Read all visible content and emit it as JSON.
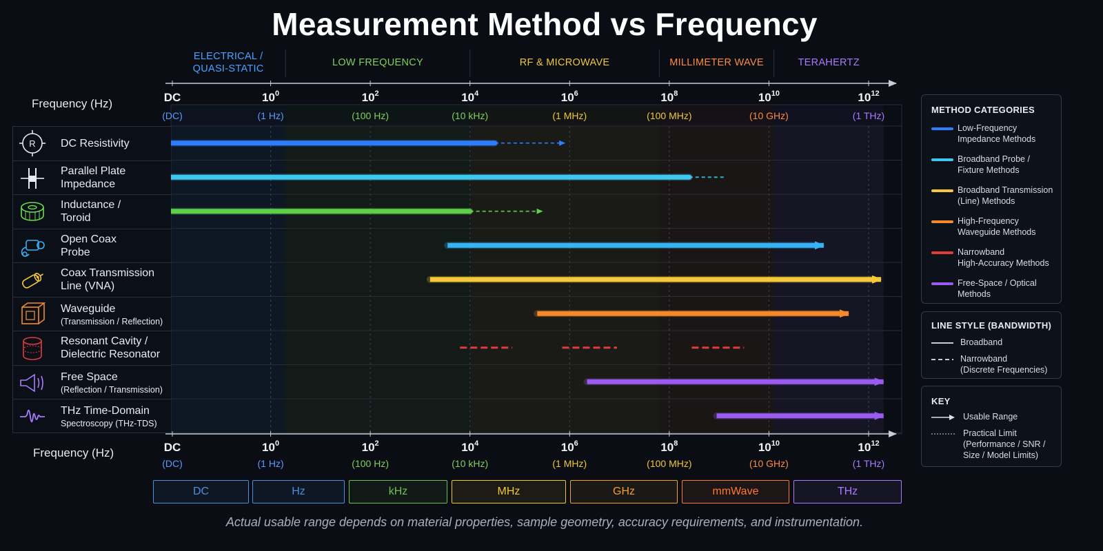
{
  "title": "Measurement Method vs Frequency",
  "footnote": "Actual usable range depends on material properties, sample geometry, accuracy requirements, and instrumentation.",
  "chart_data": {
    "type": "bar",
    "title": "Measurement Method vs Frequency",
    "xlabel": "Frequency (Hz)",
    "x_scale": "log",
    "x_range_log10": [
      -2,
      12.3
    ],
    "regions": [
      {
        "label": "ELECTRICAL /\nQUASI-STATIC",
        "from": -2,
        "to": 0.3,
        "color": "#4aa3ff"
      },
      {
        "label": "LOW FREQUENCY",
        "from": 0.3,
        "to": 4,
        "color": "#7fd25a"
      },
      {
        "label": "RF & MICROWAVE",
        "from": 4,
        "to": 7.8,
        "color": "#f2c832"
      },
      {
        "label": "MILLIMETER WAVE",
        "from": 7.8,
        "to": 10.1,
        "color": "#ff8a3d"
      },
      {
        "label": "TERAHERTZ",
        "from": 10.1,
        "to": 12.3,
        "color": "#a97cff"
      }
    ],
    "ticks": [
      {
        "pos": -2,
        "base": "DC",
        "exp": "",
        "sub": "(DC)",
        "color": "#5a9cff"
      },
      {
        "pos": 0,
        "base": "10",
        "exp": "0",
        "sub": "(1 Hz)",
        "color": "#5a9cff"
      },
      {
        "pos": 2,
        "base": "10",
        "exp": "2",
        "sub": "(100 Hz)",
        "color": "#7fd25a"
      },
      {
        "pos": 4,
        "base": "10",
        "exp": "4",
        "sub": "(10 kHz)",
        "color": "#7fd25a"
      },
      {
        "pos": 6,
        "base": "10",
        "exp": "6",
        "sub": "(1 MHz)",
        "color": "#f2c832"
      },
      {
        "pos": 8,
        "base": "10",
        "exp": "8",
        "sub": "(100 MHz)",
        "color": "#f2c832"
      },
      {
        "pos": 10,
        "base": "10",
        "exp": "10",
        "sub": "(10 GHz)",
        "color": "#ff8a3d"
      },
      {
        "pos": 12,
        "base": "10",
        "exp": "12",
        "sub": "(1 THz)",
        "color": "#a97cff"
      }
    ],
    "methods": [
      {
        "l1": "DC Resistivity",
        "l2": "",
        "icon": "resistor-icon",
        "color": "#2f7dff",
        "segments": [
          {
            "from": -2,
            "to": 4.5,
            "style": "solid"
          }
        ],
        "limit": [
          4.5,
          5.9
        ]
      },
      {
        "l1": "Parallel Plate",
        "l2": "Impedance",
        "icon": "parallel-plate-icon",
        "color": "#3ec8ef",
        "segments": [
          {
            "from": -2,
            "to": 8.4,
            "style": "solid"
          }
        ],
        "limit": [
          8.4,
          9.1
        ]
      },
      {
        "l1": "Inductance /",
        "l2": "Toroid",
        "icon": "toroid-icon",
        "color": "#5fcf4a",
        "segments": [
          {
            "from": -2,
            "to": 4,
            "style": "solid"
          }
        ],
        "limit": [
          4,
          5.45
        ]
      },
      {
        "l1": "Open Coax",
        "l2": "Probe",
        "icon": "coax-probe-icon",
        "color": "#35b3f5",
        "segments": [
          {
            "from": 3.55,
            "to": 11.1,
            "style": "arrow"
          }
        ]
      },
      {
        "l1": "Coax Transmission",
        "l2": "Line (VNA)",
        "icon": "coax-line-icon",
        "color": "#f6c93a",
        "segments": [
          {
            "from": 3.2,
            "to": 12.25,
            "style": "arrow"
          }
        ]
      },
      {
        "l1": "Waveguide",
        "l2": "(Transmission / Reflection)",
        "icon": "waveguide-icon",
        "color": "#f58a2c",
        "segments": [
          {
            "from": 5.35,
            "to": 11.6,
            "style": "arrow"
          }
        ]
      },
      {
        "l1": "Resonant Cavity /",
        "l2": "Dielectric Resonator",
        "icon": "cavity-icon",
        "color": "#e23b3b",
        "segments": [
          {
            "from": 3.8,
            "to": 4.85,
            "style": "dashed"
          },
          {
            "from": 5.85,
            "to": 6.95,
            "style": "dashed"
          },
          {
            "from": 8.45,
            "to": 9.5,
            "style": "dashed"
          }
        ]
      },
      {
        "l1": "Free Space",
        "l2": "(Reflection / Transmission)",
        "icon": "horn-antenna-icon",
        "color": "#9a5cf0",
        "segments": [
          {
            "from": 6.35,
            "to": 12.3,
            "style": "arrow"
          }
        ]
      },
      {
        "l1": "THz Time-Domain",
        "l2": "Spectroscopy (THz-TDS)",
        "icon": "waveform-icon",
        "color": "#9a5cf0",
        "segments": [
          {
            "from": 8.95,
            "to": 12.3,
            "style": "arrow"
          }
        ]
      }
    ]
  },
  "legend": {
    "categories_title": "METHOD CATEGORIES",
    "categories": [
      {
        "label": "Low-Frequency\nImpedance Methods",
        "color": "#2f7dff"
      },
      {
        "label": "Broadband Probe /\nFixture Methods",
        "color": "#3ec8ef"
      },
      {
        "label": "Broadband Transmission\n(Line) Methods",
        "color": "#f6c93a"
      },
      {
        "label": "High-Frequency\nWaveguide Methods",
        "color": "#f58a2c"
      },
      {
        "label": "Narrowband\nHigh-Accuracy Methods",
        "color": "#e23b3b"
      },
      {
        "label": "Free-Space / Optical\nMethods",
        "color": "#9a5cf0"
      }
    ],
    "linestyle_title": "LINE STYLE (BANDWIDTH)",
    "linestyles": [
      {
        "label": "Broadband",
        "style": "solid"
      },
      {
        "label": "Narrowband\n(Discrete Frequencies)",
        "style": "dashed"
      }
    ],
    "key_title": "KEY",
    "keys": [
      {
        "label": "Usable Range",
        "style": "arrow"
      },
      {
        "label": "Practical Limit\n(Performance / SNR /\nSize / Model Limits)",
        "style": "dotted"
      }
    ]
  },
  "unit_bands": [
    {
      "label": "DC",
      "color": "#4a8fe0"
    },
    {
      "label": "Hz",
      "color": "#4a8fe0"
    },
    {
      "label": "kHz",
      "color": "#6fc24e"
    },
    {
      "label": "MHz",
      "color": "#f2c832"
    },
    {
      "label": "GHz",
      "color": "#f2a032"
    },
    {
      "label": "mmWave",
      "color": "#ff7a2d"
    },
    {
      "label": "THz",
      "color": "#a97cff"
    }
  ]
}
